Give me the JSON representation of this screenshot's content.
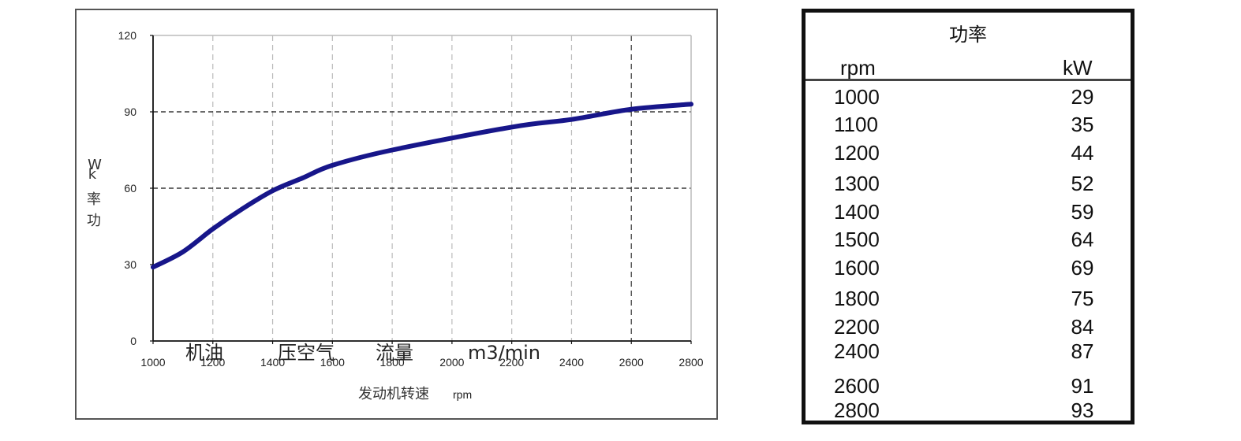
{
  "chart_data": {
    "type": "line",
    "y_unit_label_chars": [
      "W",
      "k",
      "率",
      "功"
    ],
    "xlabel_text": "发动机转速",
    "xlabel_unit": "rpm",
    "x_ticks": [
      1000,
      1200,
      1400,
      1600,
      1800,
      2000,
      2200,
      2400,
      2600,
      2800
    ],
    "y_ticks": [
      0,
      30,
      60,
      90,
      120
    ],
    "xlim": [
      1000,
      2800
    ],
    "ylim": [
      0,
      120
    ],
    "series": [
      {
        "color": "#17168a",
        "x": [
          1000,
          1100,
          1200,
          1300,
          1400,
          1500,
          1600,
          1800,
          2200,
          2400,
          2600,
          2800
        ],
        "y": [
          29,
          35,
          44,
          52,
          59,
          64,
          69,
          75,
          84,
          87,
          91,
          93
        ]
      }
    ],
    "reference_lines_y": [
      60,
      90
    ],
    "overlay_texts": [
      "机油",
      "压空气",
      "流量",
      "m3/min"
    ],
    "grid": "vertical dashed at each x tick"
  },
  "table": {
    "title": "功率",
    "col_rpm": "rpm",
    "col_kw": "kW",
    "rows": [
      {
        "rpm": "1000",
        "kw": "29"
      },
      {
        "rpm": "1100",
        "kw": "35"
      },
      {
        "rpm": "1200",
        "kw": "44"
      },
      {
        "rpm": "1300",
        "kw": "52"
      },
      {
        "rpm": "1400",
        "kw": "59"
      },
      {
        "rpm": "1500",
        "kw": "64"
      },
      {
        "rpm": "1600",
        "kw": "69"
      },
      {
        "rpm": "1800",
        "kw": "75"
      },
      {
        "rpm": "2200",
        "kw": "84"
      },
      {
        "rpm": "2400",
        "kw": "87"
      },
      {
        "rpm": "2600",
        "kw": "91"
      },
      {
        "rpm": "2800",
        "kw": "93"
      }
    ]
  }
}
